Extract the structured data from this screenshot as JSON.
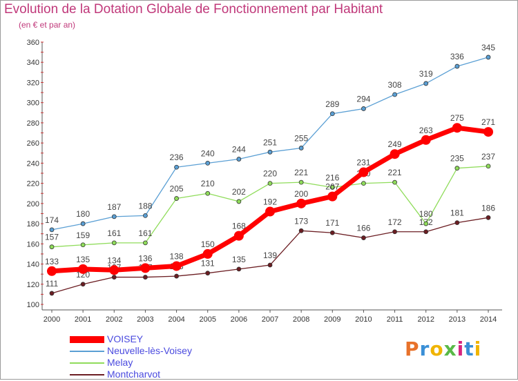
{
  "header": {
    "title": "Evolution de la Dotation Globale de Fonctionnement par Habitant",
    "subtitle": "(en € et par an)"
  },
  "logo": {
    "text": "Proxiti",
    "colors": [
      "#e8722a",
      "#3a8fd6",
      "#f0b400",
      "#59b947",
      "#d6257f",
      "#3a8fd6",
      "#f0b400"
    ]
  },
  "chart_data": {
    "type": "line",
    "x": [
      2000,
      2001,
      2002,
      2003,
      2004,
      2005,
      2006,
      2007,
      2008,
      2009,
      2010,
      2011,
      2012,
      2013,
      2014
    ],
    "ylim": [
      100,
      360
    ],
    "yticks": [
      100,
      120,
      140,
      160,
      180,
      200,
      220,
      240,
      260,
      280,
      300,
      320,
      340,
      360
    ],
    "grid": false,
    "legend_position": "bottom-left",
    "series": [
      {
        "name": "Montcharvot",
        "color": "#6b1d22",
        "values": [
          111,
          120,
          127,
          127,
          128,
          131,
          135,
          139,
          173,
          171,
          166,
          172,
          172,
          181,
          186
        ]
      },
      {
        "name": "Melay",
        "color": "#8fdc5a",
        "values": [
          157,
          159,
          161,
          161,
          205,
          210,
          202,
          220,
          221,
          216,
          220,
          221,
          180,
          235,
          237
        ]
      },
      {
        "name": "Neuvelle-lès-Voisey",
        "color": "#5a9fd4",
        "values": [
          174,
          180,
          187,
          188,
          236,
          240,
          244,
          251,
          255,
          289,
          294,
          308,
          319,
          336,
          345
        ]
      },
      {
        "name": "VOISEY",
        "color": "#ff0000",
        "values": [
          133,
          135,
          134,
          136,
          138,
          150,
          168,
          192,
          200,
          207,
          231,
          249,
          263,
          275,
          271
        ]
      }
    ]
  }
}
